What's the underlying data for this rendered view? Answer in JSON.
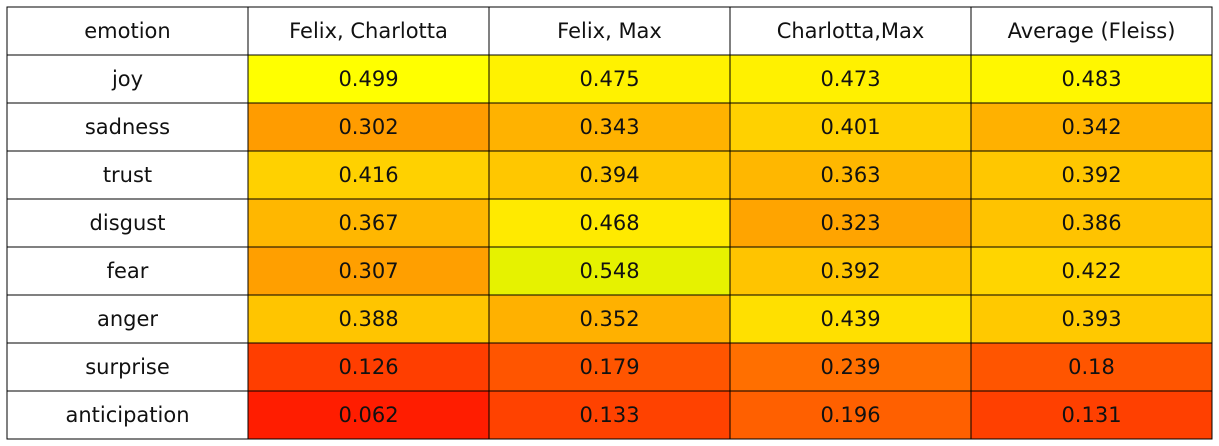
{
  "chart_data": {
    "type": "table",
    "columns": [
      "emotion",
      "Felix, Charlotta",
      "Felix, Max",
      "Charlotta,Max",
      "Average (Fleiss)"
    ],
    "rows": [
      {
        "emotion": "joy",
        "values": [
          0.499,
          0.475,
          0.473,
          0.483
        ],
        "labels": [
          "0.499",
          "0.475",
          "0.473",
          "0.483"
        ]
      },
      {
        "emotion": "sadness",
        "values": [
          0.302,
          0.343,
          0.401,
          0.342
        ],
        "labels": [
          "0.302",
          "0.343",
          "0.401",
          "0.342"
        ]
      },
      {
        "emotion": "trust",
        "values": [
          0.416,
          0.394,
          0.363,
          0.392
        ],
        "labels": [
          "0.416",
          "0.394",
          "0.363",
          "0.392"
        ]
      },
      {
        "emotion": "disgust",
        "values": [
          0.367,
          0.468,
          0.323,
          0.386
        ],
        "labels": [
          "0.367",
          "0.468",
          "0.323",
          "0.386"
        ]
      },
      {
        "emotion": "fear",
        "values": [
          0.307,
          0.548,
          0.392,
          0.422
        ],
        "labels": [
          "0.307",
          "0.548",
          "0.392",
          "0.422"
        ]
      },
      {
        "emotion": "anger",
        "values": [
          0.388,
          0.352,
          0.439,
          0.393
        ],
        "labels": [
          "0.388",
          "0.352",
          "0.439",
          "0.393"
        ]
      },
      {
        "emotion": "surprise",
        "values": [
          0.126,
          0.179,
          0.239,
          0.18
        ],
        "labels": [
          "0.126",
          "0.179",
          "0.239",
          "0.18"
        ]
      },
      {
        "emotion": "anticipation",
        "values": [
          0.062,
          0.133,
          0.196,
          0.131
        ],
        "labels": [
          "0.062",
          "0.133",
          "0.196",
          "0.131"
        ]
      }
    ],
    "colors": {
      "cell_fill": [
        [
          "#ffff00",
          "#fff200",
          "#fff100",
          "#fff700"
        ],
        [
          "#ff9c00",
          "#ffb200",
          "#ffd100",
          "#ffb100"
        ],
        [
          "#ffd100",
          "#ffc700",
          "#ffb700",
          "#ffc700"
        ],
        [
          "#ffb700",
          "#ffea00",
          "#ffa400",
          "#ffc300"
        ],
        [
          "#ff9f00",
          "#e6f200",
          "#ffc400",
          "#ffd500"
        ],
        [
          "#ffc500",
          "#ffb100",
          "#ffe000",
          "#ffc900"
        ],
        [
          "#ff3e00",
          "#ff5500",
          "#ff6f00",
          "#ff5500"
        ],
        [
          "#ff1d00",
          "#ff4200",
          "#ff6000",
          "#ff4000"
        ]
      ],
      "header_fill": "#ffffff",
      "label_fill": "#ffffff",
      "grid": "#000000",
      "text": "#111111"
    }
  }
}
